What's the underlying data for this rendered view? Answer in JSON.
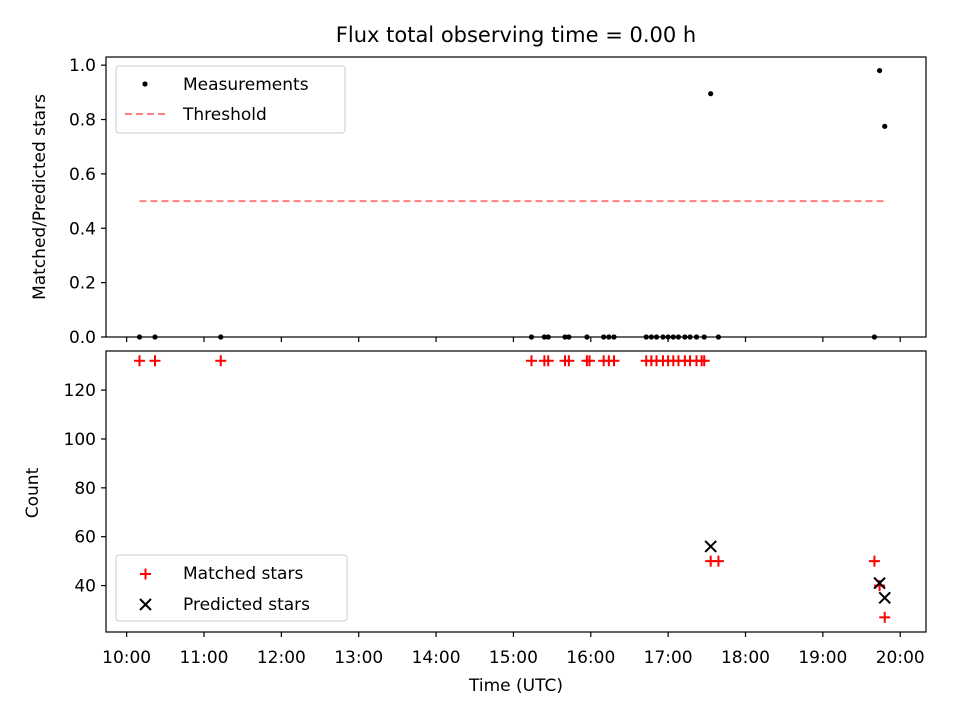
{
  "title": "Flux total observing time = 0.00 h",
  "xlabel": "Time (UTC)",
  "x_tick_labels": [
    "10:00",
    "11:00",
    "12:00",
    "13:00",
    "14:00",
    "15:00",
    "16:00",
    "17:00",
    "18:00",
    "19:00",
    "20:00"
  ],
  "colors": {
    "measurement": "#000000",
    "threshold": "#ff7f7f",
    "matched": "#ff0000",
    "predicted": "#000000"
  },
  "chart_data": [
    {
      "type": "scatter",
      "ylabel": "Matched/Predicted stars",
      "ylim": [
        0,
        1.03
      ],
      "y_ticks": [
        "0.0",
        "0.2",
        "0.4",
        "0.6",
        "0.8",
        "1.0"
      ],
      "legend": {
        "placement": "upper-left",
        "entries": [
          "Measurements",
          "Threshold"
        ]
      },
      "threshold": {
        "name": "Threshold",
        "y": 0.5,
        "x_start": "10:10",
        "x_end": "19:48"
      },
      "series": [
        {
          "name": "Measurements",
          "points": [
            [
              "10:10",
              0
            ],
            [
              "10:22",
              0
            ],
            [
              "11:13",
              0
            ],
            [
              "15:14",
              0
            ],
            [
              "15:24",
              0
            ],
            [
              "15:27",
              0
            ],
            [
              "15:40",
              0
            ],
            [
              "15:43",
              0
            ],
            [
              "15:57",
              0
            ],
            [
              "16:10",
              0
            ],
            [
              "16:14",
              0
            ],
            [
              "16:18",
              0
            ],
            [
              "16:43",
              0
            ],
            [
              "16:47",
              0
            ],
            [
              "16:51",
              0
            ],
            [
              "16:56",
              0
            ],
            [
              "17:00",
              0
            ],
            [
              "17:04",
              0
            ],
            [
              "17:08",
              0
            ],
            [
              "17:13",
              0
            ],
            [
              "17:17",
              0
            ],
            [
              "17:22",
              0
            ],
            [
              "17:28",
              0
            ],
            [
              "17:33",
              0.895
            ],
            [
              "17:39",
              0
            ],
            [
              "19:40",
              0
            ],
            [
              "19:44",
              0.98
            ],
            [
              "19:48",
              0.775
            ]
          ]
        }
      ]
    },
    {
      "type": "scatter",
      "ylabel": "Count",
      "ylim": [
        21,
        136
      ],
      "y_ticks": [
        "40",
        "60",
        "80",
        "100",
        "120"
      ],
      "legend": {
        "placement": "lower-left",
        "entries": [
          "Matched stars",
          "Predicted stars"
        ]
      },
      "series": [
        {
          "name": "Matched stars",
          "marker": "plus",
          "points": [
            [
              "10:10",
              132
            ],
            [
              "10:22",
              132
            ],
            [
              "11:13",
              132
            ],
            [
              "15:14",
              132
            ],
            [
              "15:24",
              132
            ],
            [
              "15:27",
              132
            ],
            [
              "15:40",
              132
            ],
            [
              "15:43",
              132
            ],
            [
              "15:57",
              132
            ],
            [
              "15:59",
              132
            ],
            [
              "16:10",
              132
            ],
            [
              "16:14",
              132
            ],
            [
              "16:18",
              132
            ],
            [
              "16:43",
              132
            ],
            [
              "16:47",
              132
            ],
            [
              "16:51",
              132
            ],
            [
              "16:56",
              132
            ],
            [
              "17:00",
              132
            ],
            [
              "17:04",
              132
            ],
            [
              "17:08",
              132
            ],
            [
              "17:13",
              132
            ],
            [
              "17:17",
              132
            ],
            [
              "17:22",
              132
            ],
            [
              "17:26",
              132
            ],
            [
              "17:28",
              132
            ],
            [
              "17:33",
              50
            ],
            [
              "17:39",
              50
            ],
            [
              "19:40",
              50
            ],
            [
              "19:44",
              40
            ],
            [
              "19:48",
              27
            ]
          ]
        },
        {
          "name": "Predicted stars",
          "marker": "x",
          "points": [
            [
              "17:33",
              56
            ],
            [
              "19:44",
              41
            ],
            [
              "19:48",
              35
            ]
          ]
        }
      ]
    }
  ]
}
